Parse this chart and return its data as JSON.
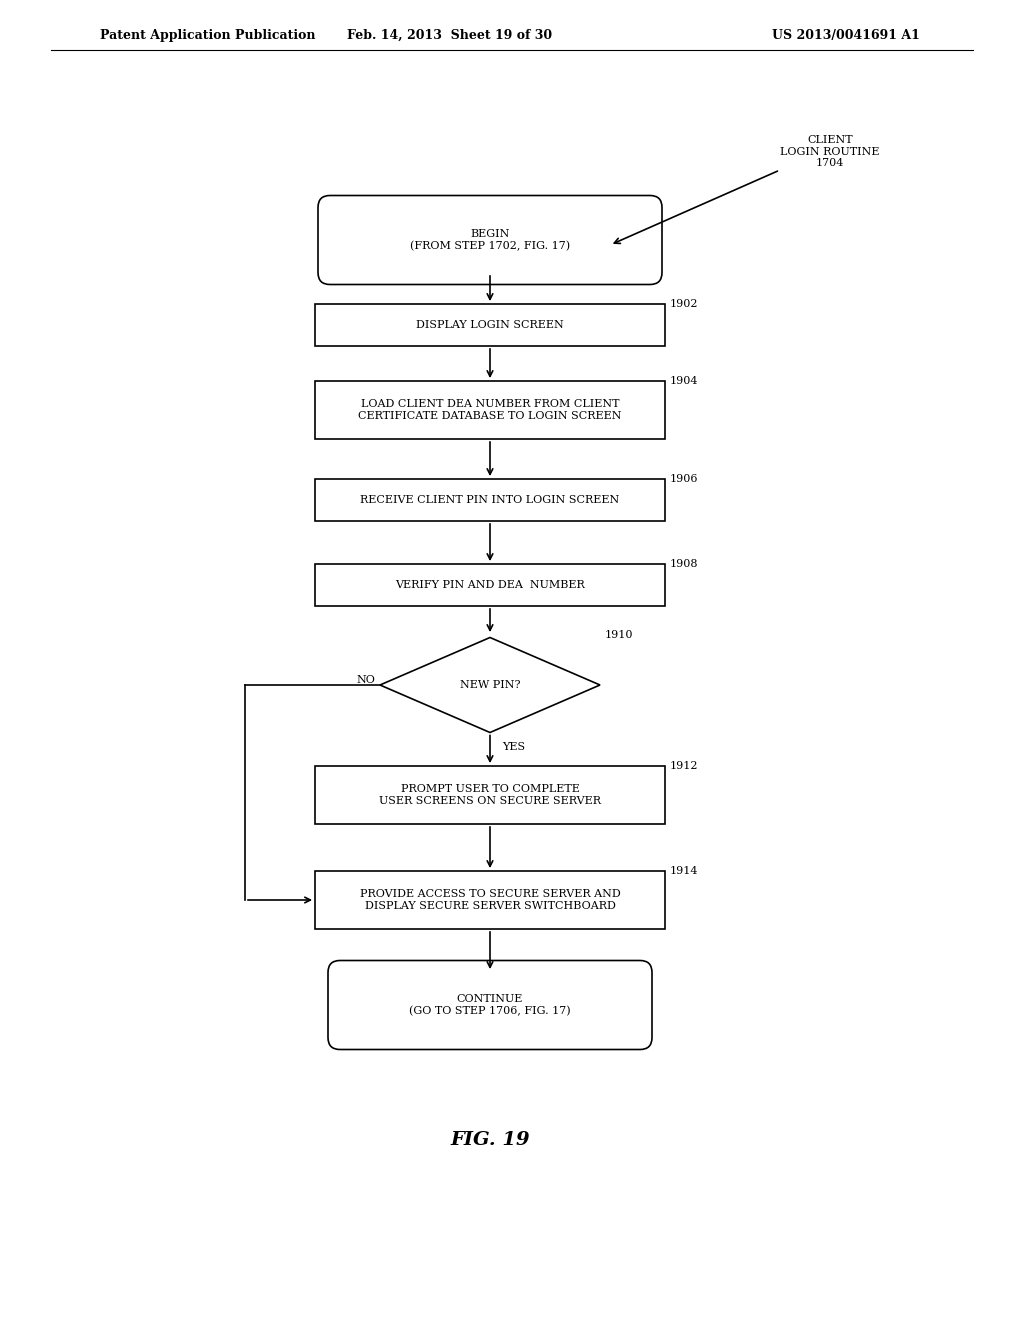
{
  "header_left": "Patent Application Publication",
  "header_mid": "Feb. 14, 2013  Sheet 19 of 30",
  "header_right": "US 2013/0041691 A1",
  "label_top_right": "CLIENT\nLOGIN ROUTINE\n1704",
  "begin_text": "BEGIN\n(FROM STEP 1702, FIG. 17)",
  "steps": [
    {
      "id": "1902",
      "text": "DISPLAY LOGIN SCREEN",
      "type": "rect"
    },
    {
      "id": "1904",
      "text": "LOAD CLIENT DEA NUMBER FROM CLIENT\nCERTIFICATE DATABASE TO LOGIN SCREEN",
      "type": "rect"
    },
    {
      "id": "1906",
      "text": "RECEIVE CLIENT PIN INTO LOGIN SCREEN",
      "type": "rect"
    },
    {
      "id": "1908",
      "text": "VERIFY PIN AND DEA  NUMBER",
      "type": "rect"
    },
    {
      "id": "1910",
      "text": "NEW PIN?",
      "type": "diamond"
    },
    {
      "id": "1912",
      "text": "PROMPT USER TO COMPLETE\nUSER SCREENS ON SECURE SERVER",
      "type": "rect"
    },
    {
      "id": "1914",
      "text": "PROVIDE ACCESS TO SECURE SERVER AND\nDISPLAY SECURE SERVER SWITCHBOARD",
      "type": "rect"
    }
  ],
  "end_text": "CONTINUE\n(GO TO STEP 1706, FIG. 17)",
  "fig_label": "FIG. 19",
  "bg_color": "#ffffff",
  "box_color": "#000000",
  "text_color": "#000000"
}
